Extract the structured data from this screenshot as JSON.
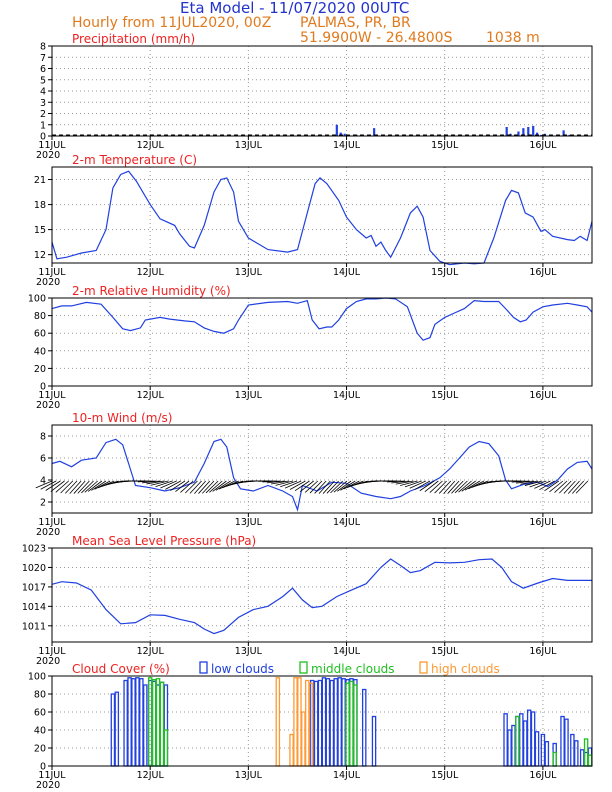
{
  "header": {
    "title": "Eta Model - 11/07/2020 00UTC",
    "subtitle": "Hourly from 11JUL2020, 00Z",
    "station": "PALMAS, PR, BR",
    "coords": "51.9900W - 26.4800S",
    "elevation": "1038  m"
  },
  "colors": {
    "title": "#2233cc",
    "subtitle": "#e07a1e",
    "panel_title": "#ee2222",
    "series": "#2040e0",
    "low_clouds": "#2040e0",
    "middle_clouds": "#20c020",
    "high_clouds": "#ff9933",
    "grid": "#999999"
  },
  "x_ticks": [
    "11JUL",
    "12JUL",
    "13JUL",
    "14JUL",
    "15JUL",
    "16JUL"
  ],
  "x_year": "2020",
  "chart_data": [
    {
      "id": "precip",
      "type": "bar",
      "title": "Precipitation (mm/h)",
      "ylim": [
        0,
        8
      ],
      "yticks": [
        "0",
        "1",
        "2",
        "3",
        "4",
        "5",
        "6",
        "7",
        "8"
      ],
      "xlim_days": [
        11,
        16.5
      ],
      "bars": [
        {
          "day": 13.9,
          "value": 1.0
        },
        {
          "day": 13.94,
          "value": 0.3
        },
        {
          "day": 13.98,
          "value": 0.2
        },
        {
          "day": 14.02,
          "value": 0.1
        },
        {
          "day": 14.1,
          "value": 0.1
        },
        {
          "day": 14.28,
          "value": 0.7
        },
        {
          "day": 14.5,
          "value": 0.05
        },
        {
          "day": 15.63,
          "value": 0.8
        },
        {
          "day": 15.67,
          "value": 0.2
        },
        {
          "day": 15.75,
          "value": 0.4
        },
        {
          "day": 15.8,
          "value": 0.7
        },
        {
          "day": 15.85,
          "value": 0.8
        },
        {
          "day": 15.9,
          "value": 0.9
        },
        {
          "day": 15.94,
          "value": 0.3
        },
        {
          "day": 15.98,
          "value": 0.1
        },
        {
          "day": 16.02,
          "value": 0.2
        },
        {
          "day": 16.08,
          "value": 0.1
        },
        {
          "day": 16.21,
          "value": 0.5
        },
        {
          "day": 16.27,
          "value": 0.1
        }
      ]
    },
    {
      "id": "temp",
      "type": "line",
      "title": "2-m Temperature (C)",
      "ylim": [
        11,
        22.5
      ],
      "yticks": [
        12,
        15,
        18,
        21
      ],
      "points": [
        [
          11.0,
          13.5
        ],
        [
          11.05,
          11.5
        ],
        [
          11.15,
          11.7
        ],
        [
          11.3,
          12.2
        ],
        [
          11.45,
          12.5
        ],
        [
          11.55,
          15.0
        ],
        [
          11.62,
          20.0
        ],
        [
          11.7,
          21.6
        ],
        [
          11.78,
          22.0
        ],
        [
          11.86,
          20.8
        ],
        [
          12.0,
          18.0
        ],
        [
          12.1,
          16.3
        ],
        [
          12.25,
          15.5
        ],
        [
          12.3,
          14.5
        ],
        [
          12.4,
          13.0
        ],
        [
          12.45,
          12.8
        ],
        [
          12.55,
          15.5
        ],
        [
          12.65,
          19.5
        ],
        [
          12.72,
          21.0
        ],
        [
          12.78,
          21.2
        ],
        [
          12.85,
          19.5
        ],
        [
          12.9,
          16.0
        ],
        [
          13.0,
          14.0
        ],
        [
          13.2,
          12.6
        ],
        [
          13.4,
          12.3
        ],
        [
          13.5,
          12.6
        ],
        [
          13.6,
          17.0
        ],
        [
          13.68,
          20.5
        ],
        [
          13.73,
          21.2
        ],
        [
          13.8,
          20.5
        ],
        [
          13.92,
          18.5
        ],
        [
          14.0,
          16.5
        ],
        [
          14.1,
          15.0
        ],
        [
          14.2,
          14.0
        ],
        [
          14.25,
          14.3
        ],
        [
          14.3,
          13.0
        ],
        [
          14.35,
          13.5
        ],
        [
          14.4,
          12.5
        ],
        [
          14.45,
          11.7
        ],
        [
          14.55,
          14.0
        ],
        [
          14.65,
          17.0
        ],
        [
          14.72,
          17.8
        ],
        [
          14.78,
          16.5
        ],
        [
          14.85,
          12.5
        ],
        [
          14.95,
          11.2
        ],
        [
          15.05,
          10.8
        ],
        [
          15.2,
          11.0
        ],
        [
          15.3,
          10.9
        ],
        [
          15.4,
          11.0
        ],
        [
          15.5,
          14.0
        ],
        [
          15.62,
          18.5
        ],
        [
          15.68,
          19.7
        ],
        [
          15.75,
          19.4
        ],
        [
          15.82,
          17.0
        ],
        [
          15.9,
          16.5
        ],
        [
          15.98,
          14.8
        ],
        [
          16.02,
          15.0
        ],
        [
          16.1,
          14.2
        ],
        [
          16.25,
          13.8
        ],
        [
          16.32,
          13.7
        ],
        [
          16.38,
          14.2
        ],
        [
          16.45,
          13.7
        ],
        [
          16.5,
          16.0
        ]
      ]
    },
    {
      "id": "rh",
      "type": "line",
      "title": "2-m Relative Humidity (%)",
      "ylim": [
        0,
        100
      ],
      "yticks": [
        0,
        20,
        40,
        60,
        80,
        100
      ],
      "points": [
        [
          11.0,
          88
        ],
        [
          11.1,
          91
        ],
        [
          11.2,
          91
        ],
        [
          11.35,
          95
        ],
        [
          11.5,
          93
        ],
        [
          11.62,
          78
        ],
        [
          11.72,
          65
        ],
        [
          11.8,
          63
        ],
        [
          11.9,
          66
        ],
        [
          11.95,
          75
        ],
        [
          12.1,
          78
        ],
        [
          12.2,
          76
        ],
        [
          12.35,
          74
        ],
        [
          12.45,
          73
        ],
        [
          12.55,
          66
        ],
        [
          12.65,
          62
        ],
        [
          12.75,
          60
        ],
        [
          12.85,
          65
        ],
        [
          12.9,
          75
        ],
        [
          13.0,
          92
        ],
        [
          13.2,
          95
        ],
        [
          13.4,
          96
        ],
        [
          13.5,
          94
        ],
        [
          13.6,
          97
        ],
        [
          13.65,
          75
        ],
        [
          13.72,
          65
        ],
        [
          13.8,
          67
        ],
        [
          13.85,
          67
        ],
        [
          13.92,
          75
        ],
        [
          14.0,
          88
        ],
        [
          14.1,
          96
        ],
        [
          14.2,
          99
        ],
        [
          14.3,
          99
        ],
        [
          14.4,
          100
        ],
        [
          14.5,
          99
        ],
        [
          14.62,
          90
        ],
        [
          14.72,
          60
        ],
        [
          14.78,
          52
        ],
        [
          14.85,
          55
        ],
        [
          14.9,
          70
        ],
        [
          15.0,
          78
        ],
        [
          15.1,
          83
        ],
        [
          15.2,
          88
        ],
        [
          15.3,
          97
        ],
        [
          15.4,
          96
        ],
        [
          15.55,
          96
        ],
        [
          15.62,
          88
        ],
        [
          15.7,
          78
        ],
        [
          15.77,
          73
        ],
        [
          15.83,
          75
        ],
        [
          15.9,
          84
        ],
        [
          16.0,
          90
        ],
        [
          16.1,
          92
        ],
        [
          16.25,
          94
        ],
        [
          16.35,
          92
        ],
        [
          16.45,
          90
        ],
        [
          16.5,
          84
        ]
      ]
    },
    {
      "id": "wind",
      "type": "line",
      "title": "10-m Wind (m/s)",
      "ylim": [
        1,
        9
      ],
      "yticks": [
        2,
        4,
        6,
        8
      ],
      "points": [
        [
          11.0,
          5.5
        ],
        [
          11.08,
          5.7
        ],
        [
          11.2,
          5.2
        ],
        [
          11.3,
          5.8
        ],
        [
          11.45,
          6.0
        ],
        [
          11.55,
          7.4
        ],
        [
          11.65,
          7.7
        ],
        [
          11.72,
          7.2
        ],
        [
          11.78,
          5.5
        ],
        [
          11.85,
          3.5
        ],
        [
          12.0,
          3.3
        ],
        [
          12.15,
          3.0
        ],
        [
          12.3,
          3.3
        ],
        [
          12.45,
          3.8
        ],
        [
          12.55,
          5.5
        ],
        [
          12.65,
          7.5
        ],
        [
          12.72,
          7.7
        ],
        [
          12.78,
          7.0
        ],
        [
          12.85,
          4.2
        ],
        [
          12.92,
          3.2
        ],
        [
          13.05,
          3.0
        ],
        [
          13.2,
          3.5
        ],
        [
          13.35,
          3.0
        ],
        [
          13.45,
          2.5
        ],
        [
          13.5,
          1.3
        ],
        [
          13.55,
          3.5
        ],
        [
          13.7,
          3.0
        ],
        [
          13.85,
          3.8
        ],
        [
          14.0,
          3.7
        ],
        [
          14.15,
          2.8
        ],
        [
          14.3,
          2.5
        ],
        [
          14.45,
          2.3
        ],
        [
          14.55,
          2.5
        ],
        [
          14.65,
          3.0
        ],
        [
          14.8,
          3.5
        ],
        [
          14.95,
          4.2
        ],
        [
          15.05,
          5.0
        ],
        [
          15.15,
          6.0
        ],
        [
          15.25,
          7.0
        ],
        [
          15.35,
          7.5
        ],
        [
          15.45,
          7.3
        ],
        [
          15.55,
          6.2
        ],
        [
          15.62,
          4.0
        ],
        [
          15.68,
          3.2
        ],
        [
          15.8,
          3.6
        ],
        [
          15.95,
          3.8
        ],
        [
          16.05,
          3.4
        ],
        [
          16.15,
          4.0
        ],
        [
          16.25,
          5.0
        ],
        [
          16.35,
          5.6
        ],
        [
          16.45,
          5.7
        ],
        [
          16.5,
          5.0
        ]
      ]
    },
    {
      "id": "mslp",
      "type": "line",
      "title": "Mean Sea Level Pressure (hPa)",
      "ylim": [
        1008.5,
        1023
      ],
      "yticks": [
        1011,
        1014,
        1017,
        1020,
        1023
      ],
      "points": [
        [
          11.0,
          1017.4
        ],
        [
          11.1,
          1017.8
        ],
        [
          11.25,
          1017.6
        ],
        [
          11.4,
          1016.5
        ],
        [
          11.55,
          1013.5
        ],
        [
          11.7,
          1011.3
        ],
        [
          11.85,
          1011.5
        ],
        [
          12.0,
          1012.7
        ],
        [
          12.15,
          1012.6
        ],
        [
          12.3,
          1012.0
        ],
        [
          12.45,
          1011.5
        ],
        [
          12.55,
          1010.5
        ],
        [
          12.65,
          1009.8
        ],
        [
          12.75,
          1010.3
        ],
        [
          12.9,
          1012.3
        ],
        [
          13.05,
          1013.5
        ],
        [
          13.2,
          1014.0
        ],
        [
          13.35,
          1015.5
        ],
        [
          13.45,
          1016.8
        ],
        [
          13.55,
          1015.0
        ],
        [
          13.65,
          1013.8
        ],
        [
          13.75,
          1014.0
        ],
        [
          13.9,
          1015.5
        ],
        [
          14.05,
          1016.5
        ],
        [
          14.2,
          1017.5
        ],
        [
          14.35,
          1020.0
        ],
        [
          14.45,
          1021.3
        ],
        [
          14.55,
          1020.3
        ],
        [
          14.65,
          1019.2
        ],
        [
          14.75,
          1019.5
        ],
        [
          14.9,
          1020.8
        ],
        [
          15.05,
          1020.7
        ],
        [
          15.2,
          1020.8
        ],
        [
          15.35,
          1021.2
        ],
        [
          15.48,
          1021.3
        ],
        [
          15.58,
          1020.0
        ],
        [
          15.68,
          1017.8
        ],
        [
          15.8,
          1016.8
        ],
        [
          15.95,
          1017.6
        ],
        [
          16.1,
          1018.3
        ],
        [
          16.25,
          1018.0
        ],
        [
          16.4,
          1018.0
        ],
        [
          16.5,
          1018.0
        ]
      ]
    },
    {
      "id": "cloud",
      "type": "bar",
      "title": "Cloud Cover (%)",
      "legend": [
        "low clouds",
        "middle clouds",
        "high clouds"
      ],
      "ylim": [
        0,
        100
      ],
      "yticks": [
        0,
        20,
        40,
        60,
        80,
        100
      ],
      "series": [
        {
          "name": "low clouds",
          "color": "#2040e0",
          "bars": [
            [
              11.62,
              80
            ],
            [
              11.66,
              82
            ],
            [
              11.75,
              95
            ],
            [
              11.79,
              98
            ],
            [
              11.83,
              97
            ],
            [
              11.87,
              98
            ],
            [
              11.91,
              97
            ],
            [
              11.95,
              90
            ],
            [
              12.0,
              95
            ],
            [
              12.04,
              94
            ],
            [
              12.08,
              90
            ],
            [
              12.12,
              93
            ],
            [
              12.16,
              90
            ],
            [
              13.65,
              95
            ],
            [
              13.69,
              94
            ],
            [
              13.73,
              95
            ],
            [
              13.77,
              98
            ],
            [
              13.81,
              97
            ],
            [
              13.85,
              95
            ],
            [
              13.89,
              97
            ],
            [
              13.93,
              98
            ],
            [
              13.97,
              97
            ],
            [
              14.01,
              96
            ],
            [
              14.05,
              97
            ],
            [
              14.09,
              96
            ],
            [
              14.18,
              85
            ],
            [
              14.28,
              55
            ],
            [
              15.62,
              58
            ],
            [
              15.66,
              40
            ],
            [
              15.7,
              45
            ],
            [
              15.74,
              55
            ],
            [
              15.78,
              58
            ],
            [
              15.82,
              50
            ],
            [
              15.86,
              62
            ],
            [
              15.9,
              60
            ],
            [
              15.94,
              38
            ],
            [
              16.0,
              35
            ],
            [
              16.04,
              27
            ],
            [
              16.12,
              25
            ],
            [
              16.2,
              55
            ],
            [
              16.24,
              52
            ],
            [
              16.3,
              35
            ],
            [
              16.34,
              28
            ],
            [
              16.4,
              18
            ],
            [
              16.44,
              15
            ],
            [
              16.48,
              20
            ]
          ]
        },
        {
          "name": "middle clouds",
          "color": "#20c020",
          "bars": [
            [
              12.0,
              98
            ],
            [
              12.04,
              96
            ],
            [
              12.08,
              97
            ],
            [
              12.12,
              93
            ],
            [
              12.16,
              40
            ],
            [
              14.01,
              92
            ],
            [
              14.05,
              94
            ],
            [
              14.09,
              90
            ],
            [
              15.74,
              55
            ],
            [
              16.12,
              15
            ],
            [
              16.44,
              30
            ],
            [
              16.48,
              12
            ]
          ]
        },
        {
          "name": "high clouds",
          "color": "#ff9933",
          "bars": [
            [
              13.3,
              98
            ],
            [
              13.44,
              35
            ],
            [
              13.48,
              98
            ],
            [
              13.52,
              98
            ],
            [
              13.56,
              60
            ],
            [
              13.6,
              95
            ],
            [
              13.64,
              92
            ]
          ]
        }
      ]
    }
  ]
}
